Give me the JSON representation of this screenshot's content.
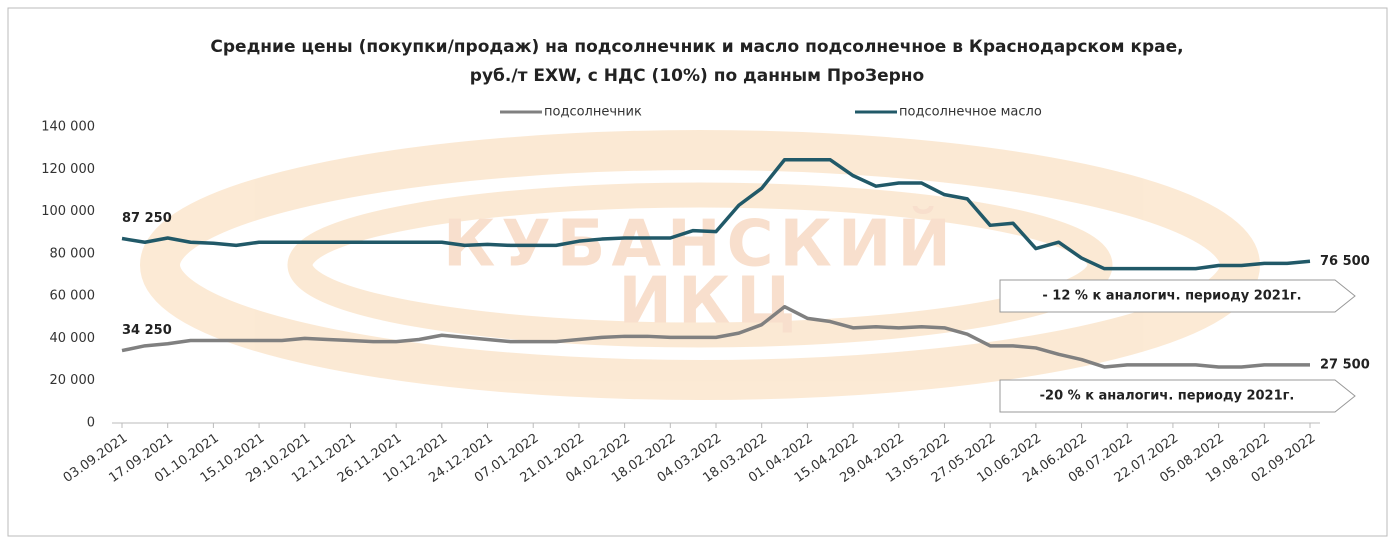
{
  "chart_data": {
    "type": "line",
    "title": [
      "Средние цены (покупки/продаж) на подсолнечник и масло подсолнечное в Краснодарском крае,",
      "руб./т EXW, с НДС (10%) по данным ПроЗерно"
    ],
    "watermark": [
      "КУБАНСКИЙ",
      "ИКЦ"
    ],
    "categories": [
      "03.09.2021",
      null,
      "17.09.2021",
      null,
      "01.10.2021",
      null,
      "15.10.2021",
      null,
      "29.10.2021",
      null,
      "12.11.2021",
      null,
      "26.11.2021",
      null,
      "10.12.2021",
      null,
      "24.12.2021",
      null,
      "07.01.2022",
      null,
      "21.01.2022",
      null,
      "04.02.2022",
      null,
      "18.02.2022",
      null,
      "04.03.2022",
      null,
      "18.03.2022",
      null,
      "01.04.2022",
      null,
      "15.04.2022",
      null,
      "29.04.2022",
      null,
      "13.05.2022",
      null,
      "27.05.2022",
      null,
      "10.06.2022",
      null,
      "24.06.2022",
      null,
      "08.07.2022",
      null,
      "22.07.2022",
      null,
      "05.08.2022",
      null,
      "19.08.2022",
      null,
      "02.09.2022"
    ],
    "series": [
      {
        "name": "подсолнечник",
        "color": "#808080",
        "values": [
          34250,
          36500,
          37500,
          39000,
          39000,
          39000,
          39000,
          39000,
          40000,
          39500,
          39000,
          38500,
          38500,
          39500,
          41500,
          40500,
          39500,
          38500,
          38500,
          38500,
          39500,
          40500,
          41000,
          41000,
          40500,
          40500,
          40500,
          42500,
          46500,
          55000,
          49500,
          48000,
          45000,
          45500,
          45000,
          45500,
          45000,
          42000,
          36500,
          36500,
          35500,
          32500,
          30000,
          26500,
          27500,
          27500,
          27500,
          27500,
          26500,
          26500,
          27500,
          27500,
          27500
        ],
        "value_labels": [
          "34 250",
          null,
          null,
          null,
          null,
          null,
          null,
          null,
          null,
          null,
          null,
          null,
          null,
          null,
          null,
          null,
          null,
          null,
          null,
          null,
          null,
          null,
          null,
          null,
          null,
          null,
          null,
          null,
          null,
          null,
          null,
          null,
          null,
          null,
          null,
          null,
          null,
          null,
          null,
          null,
          null,
          null,
          null,
          null,
          null,
          null,
          null,
          null,
          null,
          null,
          null,
          null,
          "27 500"
        ]
      },
      {
        "name": "подсолнечное масло",
        "color": "#215968",
        "values": [
          87250,
          85500,
          87500,
          85500,
          85000,
          84000,
          85500,
          85500,
          85500,
          85500,
          85500,
          85500,
          85500,
          85500,
          85500,
          84000,
          84500,
          84000,
          84000,
          84000,
          86000,
          87000,
          87500,
          87500,
          87500,
          91000,
          90500,
          103000,
          111000,
          124500,
          124500,
          124500,
          117000,
          112000,
          113500,
          113500,
          108000,
          106000,
          93500,
          94500,
          82500,
          85500,
          78000,
          73000,
          73000,
          73000,
          73000,
          73000,
          74500,
          74500,
          75500,
          75500,
          76500
        ],
        "value_labels": [
          "87 250",
          null,
          null,
          null,
          null,
          null,
          null,
          null,
          null,
          null,
          null,
          null,
          null,
          null,
          null,
          null,
          null,
          null,
          null,
          null,
          null,
          null,
          null,
          null,
          null,
          null,
          null,
          null,
          null,
          null,
          null,
          null,
          null,
          null,
          null,
          null,
          null,
          null,
          null,
          null,
          null,
          null,
          null,
          null,
          null,
          null,
          null,
          null,
          null,
          null,
          null,
          null,
          "76 500"
        ]
      }
    ],
    "ylim": [
      0,
      140000
    ],
    "yticks": [
      {
        "value": 0,
        "label": "0"
      },
      {
        "value": 20000,
        "label": "20 000"
      },
      {
        "value": 40000,
        "label": "40 000"
      },
      {
        "value": 60000,
        "label": "60 000"
      },
      {
        "value": 80000,
        "label": "80 000"
      },
      {
        "value": 100000,
        "label": "100 000"
      },
      {
        "value": 120000,
        "label": "120 000"
      },
      {
        "value": 140000,
        "label": "140 000"
      }
    ],
    "annotations": [
      "- 12 % к аналогич. периоду 2021г.",
      "-20 % к аналогич. периоду 2021г."
    ]
  }
}
